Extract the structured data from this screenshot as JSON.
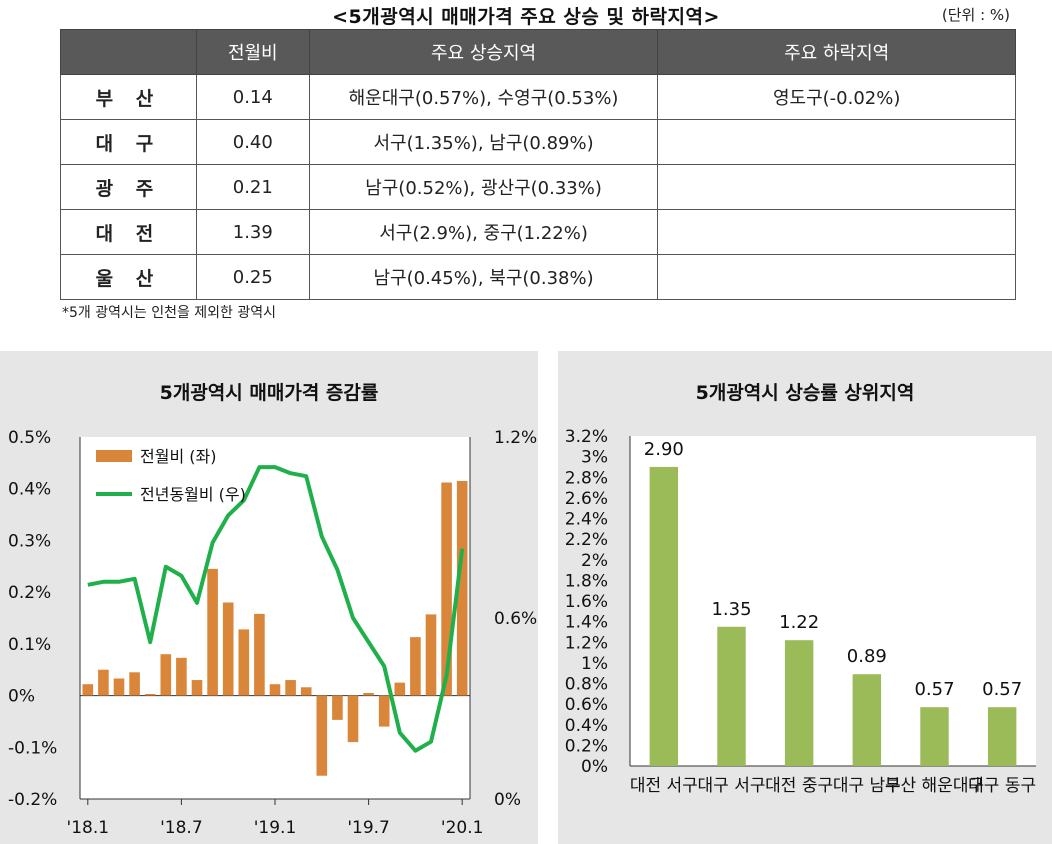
{
  "table": {
    "title": "<5개광역시 매매가격 주요 상승 및 하락지역>",
    "unit": "(단위 : %)",
    "headers": [
      "",
      "전월비",
      "주요 상승지역",
      "주요 하락지역"
    ],
    "rows": [
      {
        "city": "부 산",
        "mom": "0.14",
        "rise": "해운대구(0.57%), 수영구(0.53%)",
        "fall": "영도구(-0.02%)"
      },
      {
        "city": "대 구",
        "mom": "0.40",
        "rise": "서구(1.35%), 남구(0.89%)",
        "fall": ""
      },
      {
        "city": "광 주",
        "mom": "0.21",
        "rise": "남구(0.52%), 광산구(0.33%)",
        "fall": ""
      },
      {
        "city": "대 전",
        "mom": "1.39",
        "rise": "서구(2.9%), 중구(1.22%)",
        "fall": ""
      },
      {
        "city": "울 산",
        "mom": "0.25",
        "rise": "남구(0.45%), 북구(0.38%)",
        "fall": ""
      }
    ],
    "footnote": "*5개 광역시는 인천을 제외한 광역시"
  },
  "chart_data": [
    {
      "type": "bar+line",
      "title": "5개광역시 매매가격 증감률",
      "x_tick_labels": [
        "'18.1",
        "'18.7",
        "'19.1",
        "'19.7",
        "'20.1"
      ],
      "x_tick_indices": [
        0,
        6,
        12,
        18,
        24
      ],
      "y_left_range": [
        -0.2,
        0.5
      ],
      "y_left_ticks": [
        "-0.2%",
        "-0.1%",
        "0%",
        "0.1%",
        "0.2%",
        "0.3%",
        "0.4%",
        "0.5%"
      ],
      "y_right_range": [
        0.0,
        1.2
      ],
      "y_right_ticks": [
        "0%",
        "0.6%",
        "1.2%"
      ],
      "legend_position": "top-left",
      "colors": {
        "bar": "#d9863b",
        "line": "#20b04b"
      },
      "series": [
        {
          "name": "전월비 (좌)",
          "axis": "left",
          "kind": "bar",
          "values": [
            0.022,
            0.05,
            0.033,
            0.045,
            0.003,
            0.08,
            0.073,
            0.03,
            0.245,
            0.18,
            0.128,
            0.158,
            0.022,
            0.03,
            0.016,
            -0.155,
            -0.047,
            -0.09,
            0.005,
            -0.06,
            0.025,
            0.113,
            0.157,
            0.412,
            0.415
          ]
        },
        {
          "name": "전년동월비 (우)",
          "axis": "right",
          "kind": "line",
          "values": [
            0.71,
            0.72,
            0.72,
            0.73,
            0.52,
            0.77,
            0.74,
            0.65,
            0.85,
            0.94,
            0.99,
            1.1,
            1.1,
            1.08,
            1.07,
            0.87,
            0.76,
            0.6,
            0.52,
            0.44,
            0.22,
            0.16,
            0.19,
            0.41,
            0.83
          ]
        }
      ]
    },
    {
      "type": "bar",
      "title": "5개광역시 상승률 상위지역",
      "categories": [
        "대전 서구",
        "대구 서구",
        "대전 중구",
        "대구 남구",
        "부산 해운대구",
        "대구 동구"
      ],
      "values": [
        2.9,
        1.35,
        1.22,
        0.89,
        0.57,
        0.57
      ],
      "value_labels": [
        "2.90",
        "1.35",
        "1.22",
        "0.89",
        "0.57",
        "0.57"
      ],
      "y_range": [
        0,
        3.2
      ],
      "y_ticks": [
        "0%",
        "0.2%",
        "0.4%",
        "0.6%",
        "0.8%",
        "1%",
        "1.2%",
        "1.4%",
        "1.6%",
        "1.8%",
        "2%",
        "2.2%",
        "2.4%",
        "2.6%",
        "2.8%",
        "3%",
        "3.2%"
      ],
      "colors": {
        "bar": "#9bbb59"
      }
    }
  ]
}
